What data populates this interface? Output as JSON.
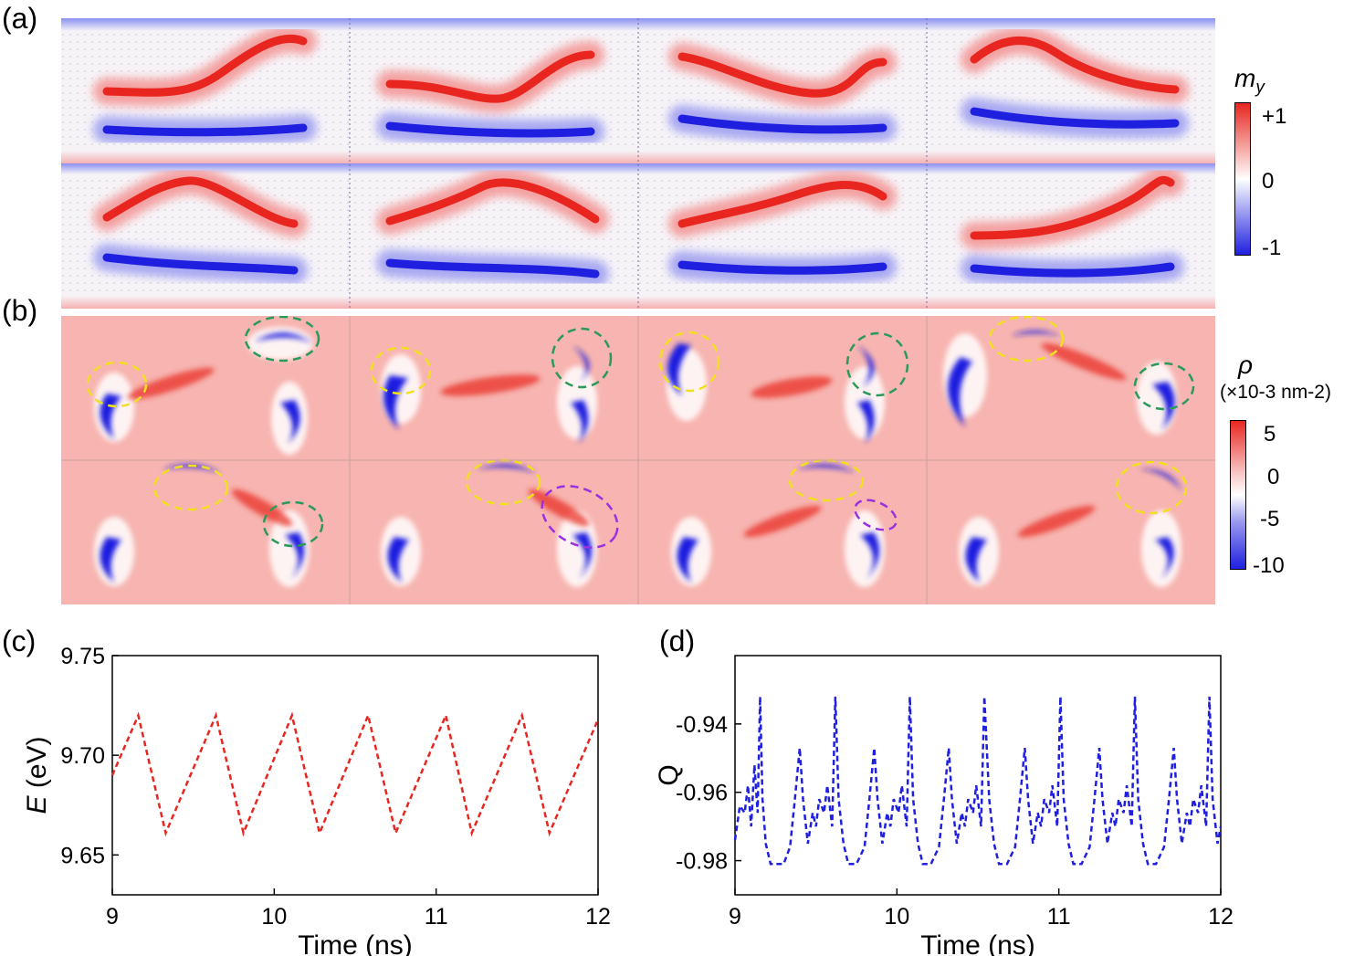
{
  "panel_labels": {
    "a": "(a)",
    "b": "(b)",
    "c": "(c)",
    "d": "(d)"
  },
  "colorbar_my": {
    "symbol": "m",
    "subscript": "y",
    "ticks": [
      "+1",
      "0",
      "-1"
    ]
  },
  "colorbar_rho": {
    "symbol": "ρ",
    "unit": "(×10-3 nm-2)",
    "ticks": [
      "5",
      "0",
      "-5",
      "-10"
    ]
  },
  "colors": {
    "red": "#e8261f",
    "blue": "#1f1fe0",
    "background_rho": "#f7b4b0",
    "yellow": "#f0e020",
    "green": "#2a9a58",
    "purple": "#9a30e0"
  },
  "chart_data": [
    {
      "type": "line",
      "panel": "(c)",
      "xlabel": "Time (ns)",
      "ylabel": "E (eV)",
      "xlim": [
        9,
        12
      ],
      "ylim": [
        9.63,
        9.75
      ],
      "xticks": [
        "9",
        "10",
        "11",
        "12"
      ],
      "yticks": [
        "9.65",
        "9.70",
        "9.75"
      ],
      "ytick_values": [
        9.65,
        9.7,
        9.75
      ],
      "line_style": "dashed",
      "color": "#e8261f",
      "x": [
        9.0,
        9.16,
        9.33,
        9.64,
        9.81,
        10.11,
        10.28,
        10.58,
        10.75,
        11.06,
        11.22,
        11.53,
        11.7,
        12.0
      ],
      "y": [
        9.69,
        9.72,
        9.661,
        9.72,
        9.661,
        9.72,
        9.661,
        9.72,
        9.661,
        9.72,
        9.661,
        9.72,
        9.661,
        9.718
      ]
    },
    {
      "type": "line",
      "panel": "(d)",
      "xlabel": "Time (ns)",
      "ylabel": "Q",
      "xlim": [
        9,
        12
      ],
      "ylim": [
        -0.99,
        -0.92
      ],
      "xticks": [
        "9",
        "10",
        "11",
        "12"
      ],
      "yticks": [
        "-0.94",
        "-0.96",
        "-0.98"
      ],
      "ytick_values": [
        -0.94,
        -0.96,
        -0.98
      ],
      "line_style": "dashed",
      "color": "#1f1fe0",
      "x": [
        9.0,
        9.03,
        9.06,
        9.08,
        9.1,
        9.12,
        9.14,
        9.155,
        9.17,
        9.19,
        9.22,
        9.25,
        9.3,
        9.34,
        9.37,
        9.4,
        9.42,
        9.45,
        9.48,
        9.5,
        9.52,
        9.55,
        9.57,
        9.6,
        9.62,
        9.64,
        9.67,
        9.7,
        9.75,
        9.8,
        9.83,
        9.86,
        9.88,
        9.91,
        9.94,
        9.96,
        9.98,
        10.01,
        10.03,
        10.06,
        10.08,
        10.1,
        10.13,
        10.16,
        10.21,
        10.26,
        10.29,
        10.32,
        10.34,
        10.37,
        10.4,
        10.42,
        10.44,
        10.47,
        10.49,
        10.52,
        10.54,
        10.57,
        10.6,
        10.63,
        10.68,
        10.73,
        10.76,
        10.79,
        10.81,
        10.84,
        10.87,
        10.89,
        10.91,
        10.94,
        10.96,
        10.99,
        11.01,
        11.03,
        11.06,
        11.09,
        11.14,
        11.19,
        11.22,
        11.25,
        11.27,
        11.3,
        11.33,
        11.35,
        11.37,
        11.4,
        11.42,
        11.45,
        11.47,
        11.49,
        11.52,
        11.55,
        11.6,
        11.65,
        11.68,
        11.71,
        11.73,
        11.76,
        11.79,
        11.81,
        11.83,
        11.86,
        11.88,
        11.91,
        11.93,
        11.95,
        11.98,
        12.0
      ],
      "y": [
        -0.974,
        -0.964,
        -0.966,
        -0.958,
        -0.97,
        -0.952,
        -0.966,
        -0.932,
        -0.962,
        -0.975,
        -0.981,
        -0.981,
        -0.981,
        -0.976,
        -0.962,
        -0.947,
        -0.962,
        -0.975,
        -0.966,
        -0.97,
        -0.962,
        -0.966,
        -0.958,
        -0.97,
        -0.932,
        -0.962,
        -0.975,
        -0.981,
        -0.981,
        -0.976,
        -0.962,
        -0.947,
        -0.962,
        -0.975,
        -0.966,
        -0.97,
        -0.962,
        -0.966,
        -0.958,
        -0.97,
        -0.932,
        -0.962,
        -0.975,
        -0.981,
        -0.981,
        -0.976,
        -0.962,
        -0.947,
        -0.962,
        -0.975,
        -0.966,
        -0.97,
        -0.962,
        -0.966,
        -0.958,
        -0.97,
        -0.932,
        -0.962,
        -0.975,
        -0.981,
        -0.981,
        -0.976,
        -0.962,
        -0.947,
        -0.962,
        -0.975,
        -0.966,
        -0.97,
        -0.962,
        -0.966,
        -0.958,
        -0.97,
        -0.932,
        -0.962,
        -0.975,
        -0.981,
        -0.981,
        -0.976,
        -0.962,
        -0.947,
        -0.962,
        -0.975,
        -0.966,
        -0.97,
        -0.962,
        -0.966,
        -0.958,
        -0.97,
        -0.932,
        -0.962,
        -0.975,
        -0.981,
        -0.981,
        -0.976,
        -0.962,
        -0.947,
        -0.962,
        -0.975,
        -0.966,
        -0.97,
        -0.962,
        -0.966,
        -0.958,
        -0.97,
        -0.932,
        -0.962,
        -0.975,
        -0.97
      ]
    }
  ]
}
